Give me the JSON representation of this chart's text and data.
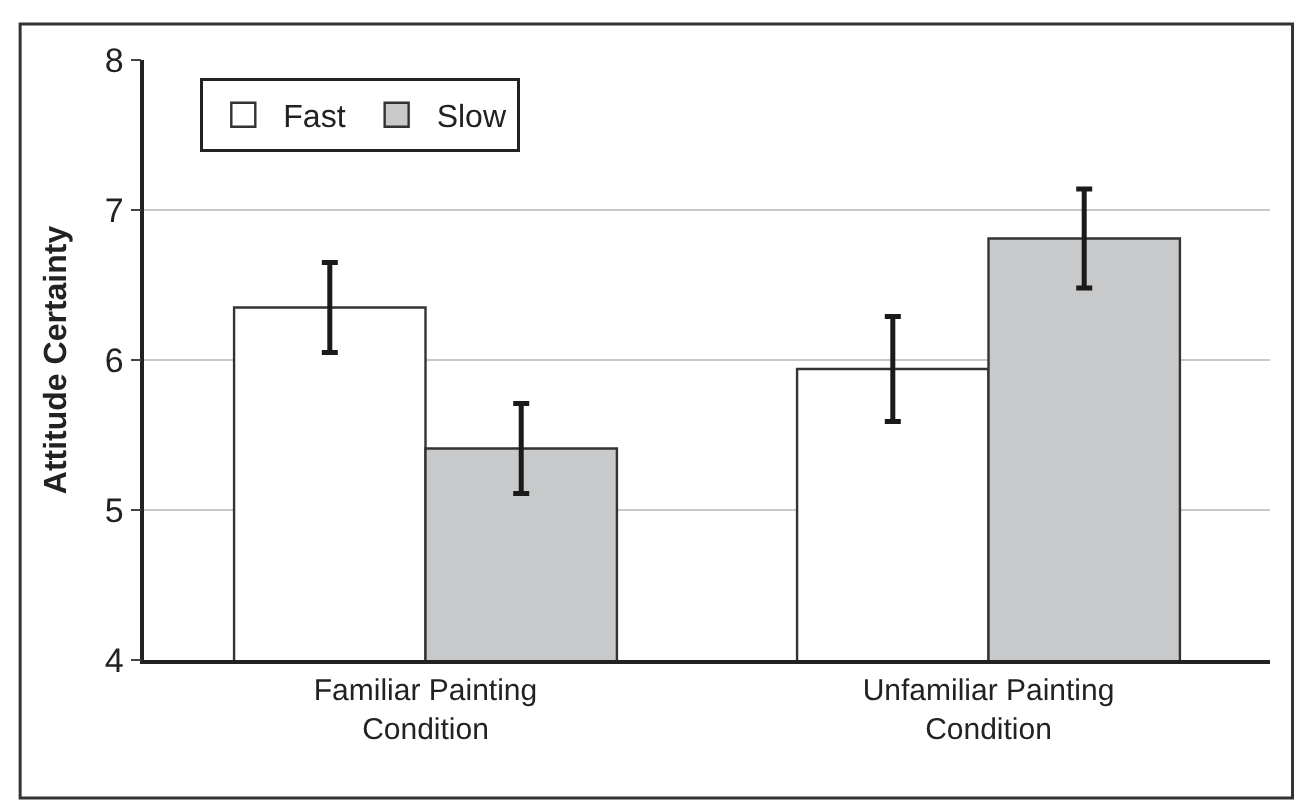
{
  "chart_data": {
    "type": "bar",
    "ylabel": "Attitude Certainty",
    "categories": [
      "Familiar Painting\nCondition",
      "Unfamiliar Painting\nCondition"
    ],
    "series": [
      {
        "name": "Fast",
        "color": "#ffffff",
        "values": [
          6.35,
          5.94
        ],
        "errors": [
          0.3,
          0.35
        ]
      },
      {
        "name": "Slow",
        "color": "#c8c9cb",
        "values": [
          5.41,
          6.81
        ],
        "errors": [
          0.3,
          0.33
        ]
      }
    ],
    "ylim": [
      4,
      8
    ],
    "yticks": [
      4,
      5,
      6,
      7,
      8
    ],
    "grid": "y",
    "legend": "top left"
  }
}
